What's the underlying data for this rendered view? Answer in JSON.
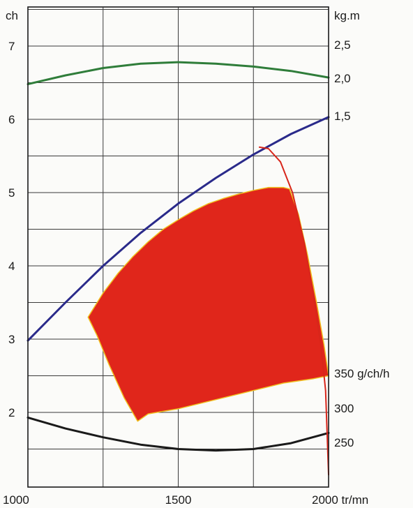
{
  "chart_data": {
    "type": "line",
    "title": "",
    "xlabel": "",
    "ylabel": "",
    "x_ticks": [
      1000,
      1500,
      2000
    ],
    "x_tick_labels": [
      "1000",
      "1500",
      "2000"
    ],
    "x_unit": "tr/mn",
    "xlim": [
      1000,
      2000
    ],
    "x_grid_step": 250,
    "left_axis": {
      "unit": "ch",
      "ticks": [
        2,
        3,
        4,
        5,
        6,
        7
      ],
      "tick_labels": [
        "2",
        "3",
        "4",
        "5",
        "6",
        "7"
      ],
      "lim": [
        1,
        7.6
      ]
    },
    "right_axis_torque": {
      "unit": "kg.m",
      "ticks": [
        1.5,
        2.0,
        2.5
      ],
      "tick_labels": [
        "1,5",
        "2,0",
        "2,5"
      ]
    },
    "right_axis_consumption": {
      "unit": "g/ch/h",
      "ticks": [
        250,
        300,
        350
      ],
      "tick_labels": [
        "250",
        "300",
        "350"
      ]
    },
    "grid": true,
    "series": [
      {
        "color": "#2f7d3a",
        "x": [
          1000,
          1125,
          1250,
          1375,
          1500,
          1625,
          1750,
          1875,
          2000
        ],
        "y": [
          6.48,
          6.6,
          6.7,
          6.76,
          6.78,
          6.76,
          6.72,
          6.66,
          6.57
        ]
      },
      {
        "color": "#2a2a8a",
        "x": [
          1000,
          1125,
          1250,
          1375,
          1500,
          1625,
          1750,
          1875,
          2000
        ],
        "y": [
          2.98,
          3.5,
          4.0,
          4.45,
          4.85,
          5.2,
          5.52,
          5.8,
          6.03
        ]
      },
      {
        "color": "#1a1a1a",
        "x": [
          1000,
          1125,
          1250,
          1375,
          1500,
          1625,
          1750,
          1875,
          2000
        ],
        "y": [
          1.93,
          1.78,
          1.66,
          1.56,
          1.5,
          1.48,
          1.5,
          1.58,
          1.72
        ]
      },
      {
        "color": "#d8261b",
        "x": [
          1770,
          1800,
          1840,
          1880,
          1920,
          1950,
          1975,
          1990,
          2000
        ],
        "y": [
          5.62,
          5.6,
          5.42,
          5.0,
          4.3,
          3.6,
          2.9,
          2.3,
          1.15
        ]
      }
    ],
    "zone": {
      "color": "#e0261b",
      "outline": "#f0c020",
      "outer_x": [
        1200,
        1250,
        1300,
        1350,
        1400,
        1450,
        1500,
        1550,
        1600,
        1650,
        1700,
        1750,
        1800,
        1850,
        1870,
        1900,
        1930,
        1960,
        1985,
        2000,
        1950,
        1900,
        1850,
        1800,
        1700,
        1600,
        1500,
        1400,
        1365,
        1320,
        1270,
        1230
      ],
      "outer_y": [
        3.3,
        3.63,
        3.9,
        4.13,
        4.33,
        4.5,
        4.63,
        4.75,
        4.85,
        4.92,
        4.98,
        5.03,
        5.07,
        5.07,
        5.05,
        4.7,
        4.15,
        3.5,
        2.92,
        2.5,
        2.46,
        2.43,
        2.4,
        2.35,
        2.25,
        2.15,
        2.05,
        1.98,
        1.88,
        2.2,
        2.65,
        3.05
      ]
    }
  }
}
